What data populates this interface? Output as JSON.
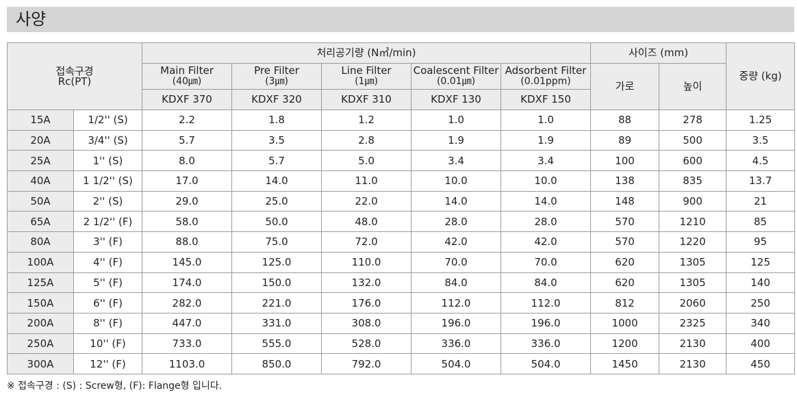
{
  "title": "사양",
  "headers": {
    "connection_line1": "접속구경",
    "connection_line2": "Rc(PT)",
    "capacity_group": "처리공기량 (N㎥/min)",
    "size_group": "사이즈 (mm)",
    "weight": "중량 (kg)",
    "width": "가로",
    "height": "높이",
    "filters": [
      {
        "name": "Main Filter",
        "rating": "(40㎛)",
        "model": "KDXF 370"
      },
      {
        "name": "Pre Filter",
        "rating": "(3㎛)",
        "model": "KDXF 320"
      },
      {
        "name": "Line Filter",
        "rating": "(1㎛)",
        "model": "KDXF 310"
      },
      {
        "name": "Coalescent Filter",
        "rating": "(0.01㎛)",
        "model": "KDXF 130"
      },
      {
        "name": "Adsorbent Filter",
        "rating": "(0.01ppm)",
        "model": "KDXF 150"
      }
    ]
  },
  "rows": [
    {
      "size": "15A",
      "rc": "1/2'' (S)",
      "main": "2.2",
      "pre": "1.8",
      "line": "1.2",
      "coal": "1.0",
      "ads": "1.0",
      "width": "88",
      "height": "278",
      "weight": "1.25"
    },
    {
      "size": "20A",
      "rc": "3/4'' (S)",
      "main": "5.7",
      "pre": "3.5",
      "line": "2.8",
      "coal": "1.9",
      "ads": "1.9",
      "width": "89",
      "height": "500",
      "weight": "3.5"
    },
    {
      "size": "25A",
      "rc": "1'' (S)",
      "main": "8.0",
      "pre": "5.7",
      "line": "5.0",
      "coal": "3.4",
      "ads": "3.4",
      "width": "100",
      "height": "600",
      "weight": "4.5"
    },
    {
      "size": "40A",
      "rc": "1 1/2'' (S)",
      "main": "17.0",
      "pre": "14.0",
      "line": "11.0",
      "coal": "10.0",
      "ads": "10.0",
      "width": "138",
      "height": "835",
      "weight": "13.7"
    },
    {
      "size": "50A",
      "rc": "2'' (S)",
      "main": "29.0",
      "pre": "25.0",
      "line": "22.0",
      "coal": "14.0",
      "ads": "14.0",
      "width": "148",
      "height": "900",
      "weight": "21"
    },
    {
      "size": "65A",
      "rc": "2 1/2'' (F)",
      "main": "58.0",
      "pre": "50.0",
      "line": "48.0",
      "coal": "28.0",
      "ads": "28.0",
      "width": "570",
      "height": "1210",
      "weight": "85"
    },
    {
      "size": "80A",
      "rc": "3'' (F)",
      "main": "88.0",
      "pre": "75.0",
      "line": "72.0",
      "coal": "42.0",
      "ads": "42.0",
      "width": "570",
      "height": "1220",
      "weight": "95"
    },
    {
      "size": "100A",
      "rc": "4'' (F)",
      "main": "145.0",
      "pre": "125.0",
      "line": "110.0",
      "coal": "70.0",
      "ads": "70.0",
      "width": "620",
      "height": "1305",
      "weight": "125"
    },
    {
      "size": "125A",
      "rc": "5'' (F)",
      "main": "174.0",
      "pre": "150.0",
      "line": "132.0",
      "coal": "84.0",
      "ads": "84.0",
      "width": "620",
      "height": "1305",
      "weight": "140"
    },
    {
      "size": "150A",
      "rc": "6'' (F)",
      "main": "282.0",
      "pre": "221.0",
      "line": "176.0",
      "coal": "112.0",
      "ads": "112.0",
      "width": "812",
      "height": "2060",
      "weight": "250"
    },
    {
      "size": "200A",
      "rc": "8'' (F)",
      "main": "447.0",
      "pre": "331.0",
      "line": "308.0",
      "coal": "196.0",
      "ads": "196.0",
      "width": "1000",
      "height": "2325",
      "weight": "340"
    },
    {
      "size": "250A",
      "rc": "10'' (F)",
      "main": "733.0",
      "pre": "555.0",
      "line": "528.0",
      "coal": "336.0",
      "ads": "336.0",
      "width": "1200",
      "height": "2130",
      "weight": "400"
    },
    {
      "size": "300A",
      "rc": "12'' (F)",
      "main": "1103.0",
      "pre": "850.0",
      "line": "792.0",
      "coal": "504.0",
      "ads": "504.0",
      "width": "1450",
      "height": "2130",
      "weight": "450"
    }
  ],
  "footnote": "※ 접속구경 : (S) : Screw형, (F): Flange형 입니다."
}
